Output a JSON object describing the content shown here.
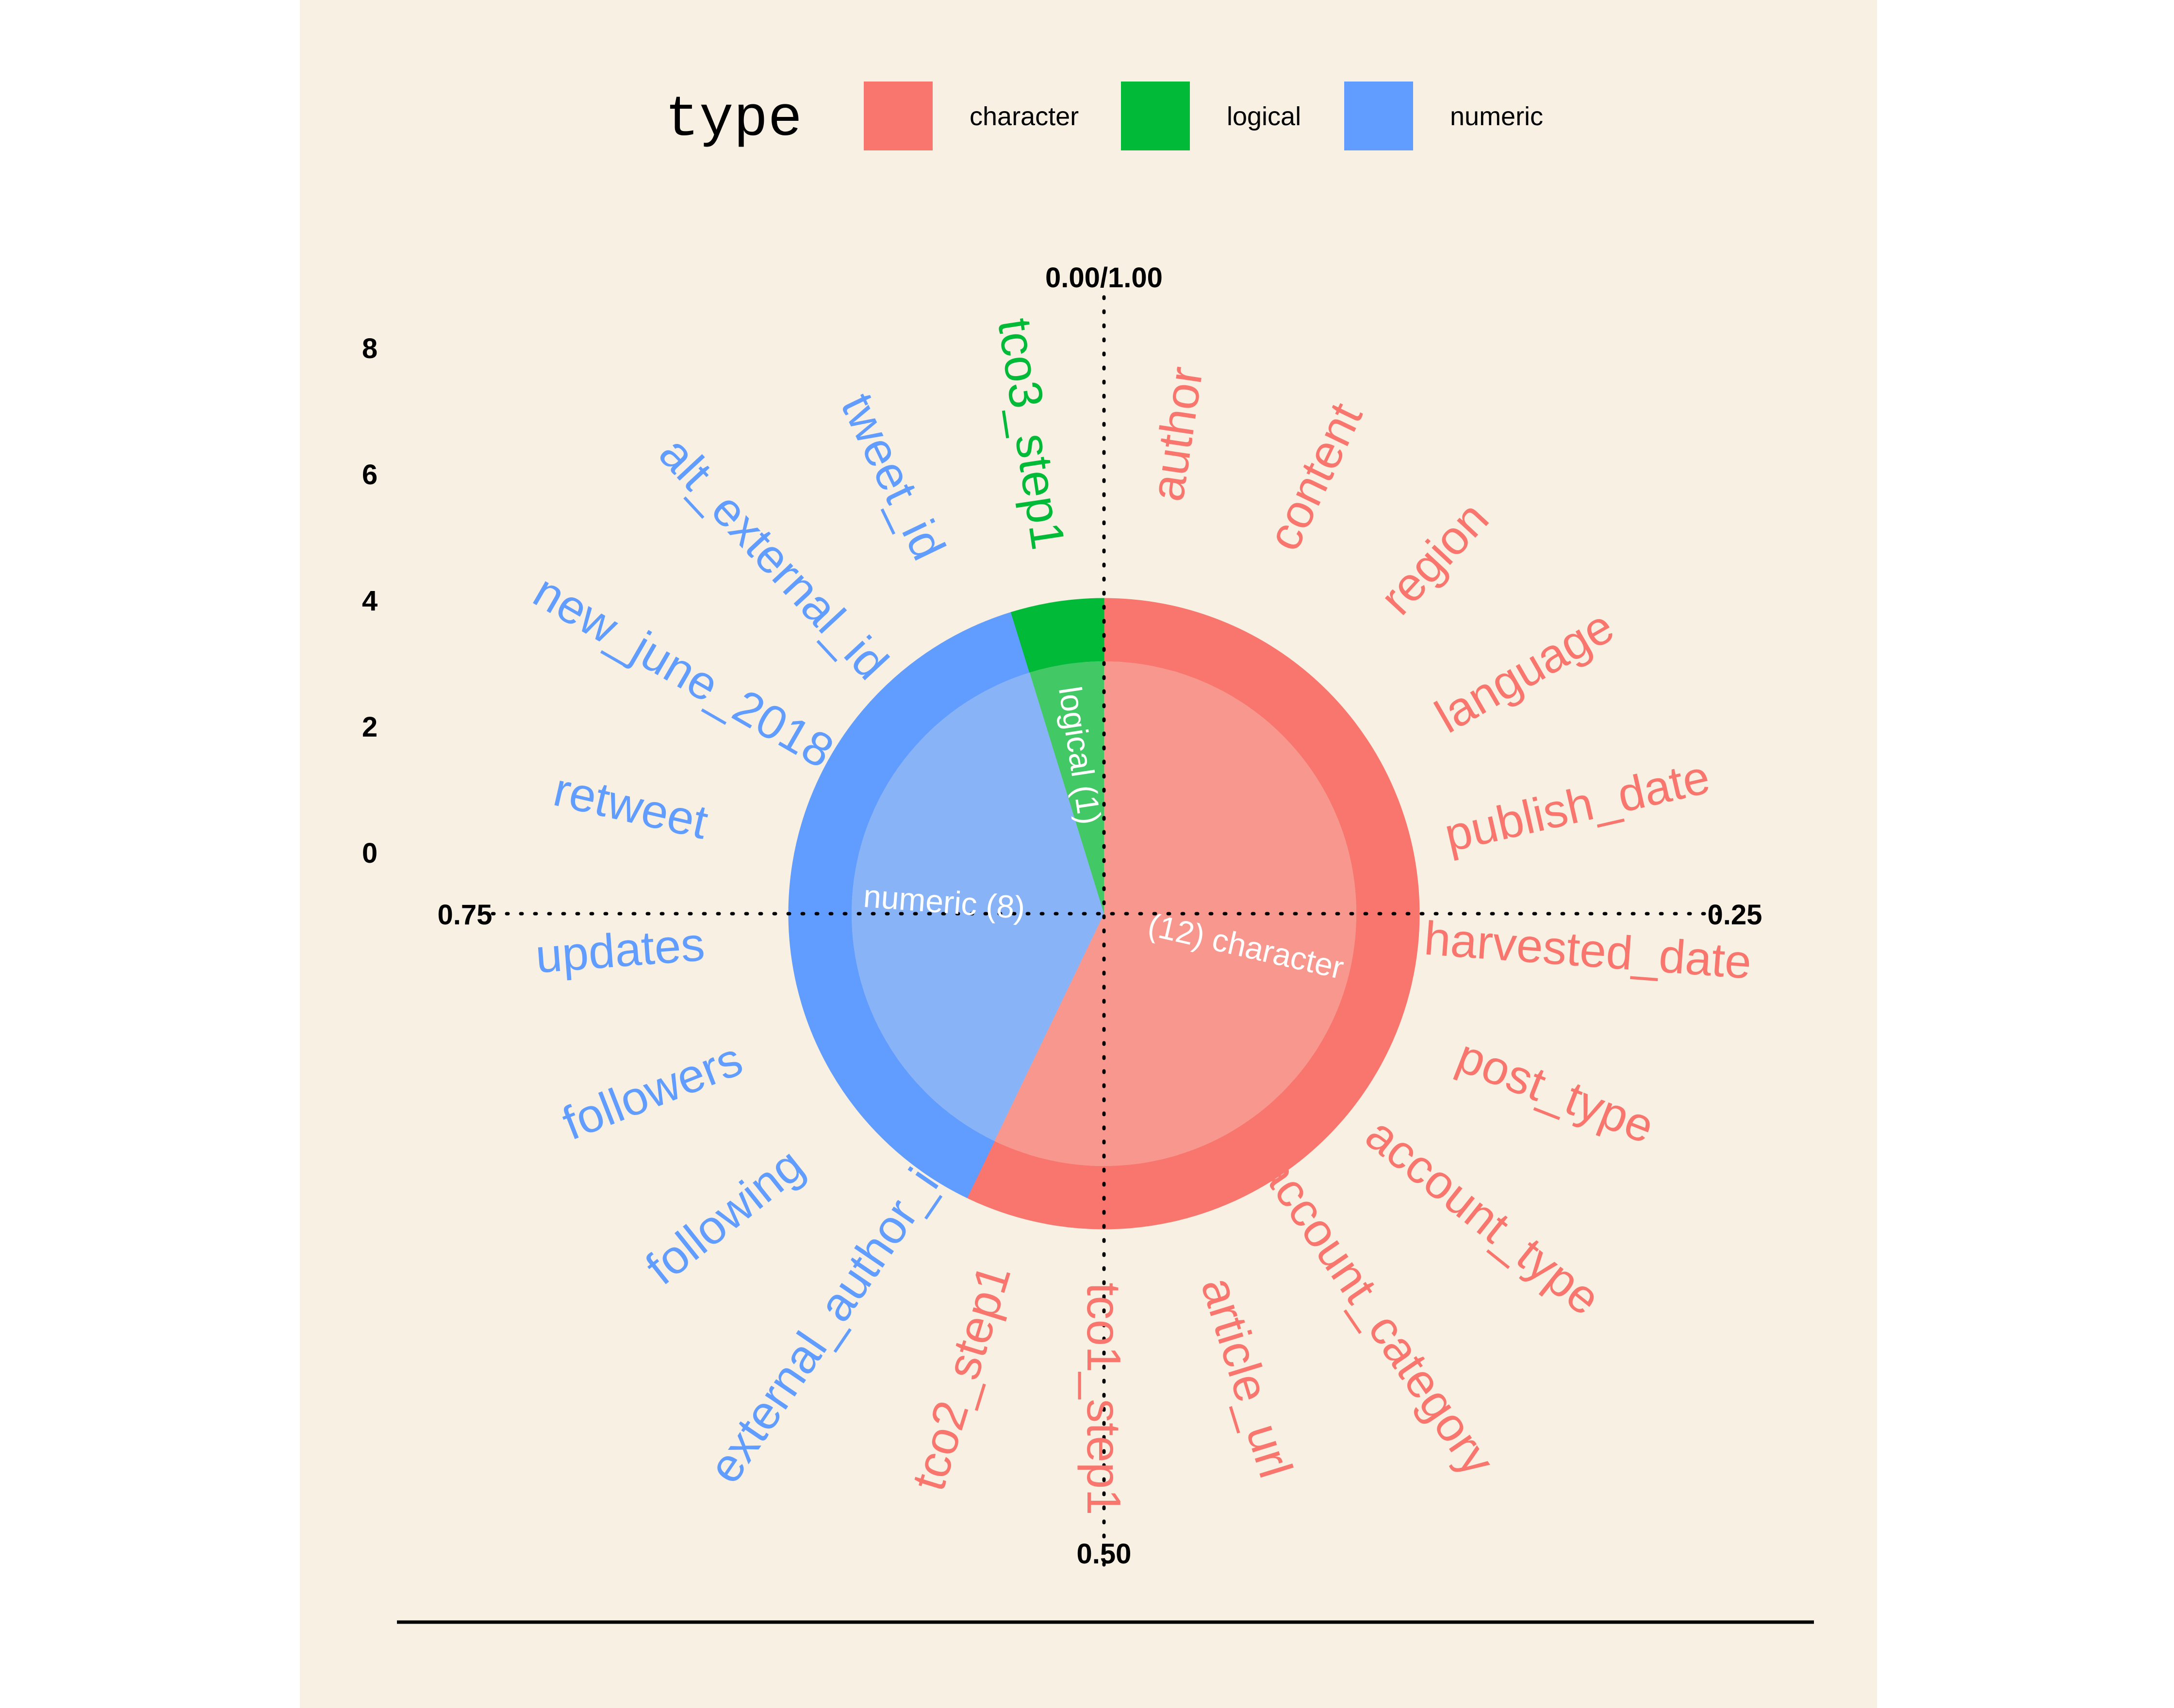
{
  "chart_data": {
    "type": "pie",
    "legend": {
      "title": "type",
      "placement": "top",
      "entries": [
        {
          "label": "character",
          "color": "#F8766D"
        },
        {
          "label": "logical",
          "color": "#00BA38"
        },
        {
          "label": "numeric",
          "color": "#619CFF"
        }
      ]
    },
    "angle_ticks": [
      "0.00/1.00",
      "0.25",
      "0.50",
      "0.75"
    ],
    "radial_ticks": [
      "0",
      "2",
      "4",
      "6",
      "8"
    ],
    "inner_slices": [
      {
        "label": "(12) character",
        "type": "character",
        "count": 12
      },
      {
        "label": "numeric (8)",
        "type": "numeric",
        "count": 8
      },
      {
        "label": "logical (1)",
        "type": "logical",
        "count": 1
      }
    ],
    "variables": [
      {
        "name": "author",
        "type": "character"
      },
      {
        "name": "content",
        "type": "character"
      },
      {
        "name": "region",
        "type": "character"
      },
      {
        "name": "language",
        "type": "character"
      },
      {
        "name": "publish_date",
        "type": "character"
      },
      {
        "name": "harvested_date",
        "type": "character"
      },
      {
        "name": "post_type",
        "type": "character"
      },
      {
        "name": "account_type",
        "type": "character"
      },
      {
        "name": "account_category",
        "type": "character"
      },
      {
        "name": "article_url",
        "type": "character"
      },
      {
        "name": "tco1_step1",
        "type": "character"
      },
      {
        "name": "tco2_step1",
        "type": "character"
      },
      {
        "name": "external_author_id",
        "type": "numeric"
      },
      {
        "name": "following",
        "type": "numeric"
      },
      {
        "name": "followers",
        "type": "numeric"
      },
      {
        "name": "updates",
        "type": "numeric"
      },
      {
        "name": "retweet",
        "type": "numeric"
      },
      {
        "name": "new_june_2018",
        "type": "numeric"
      },
      {
        "name": "alt_external_id",
        "type": "numeric"
      },
      {
        "name": "tweet_id",
        "type": "numeric"
      },
      {
        "name": "tco3_step1",
        "type": "logical"
      }
    ]
  }
}
